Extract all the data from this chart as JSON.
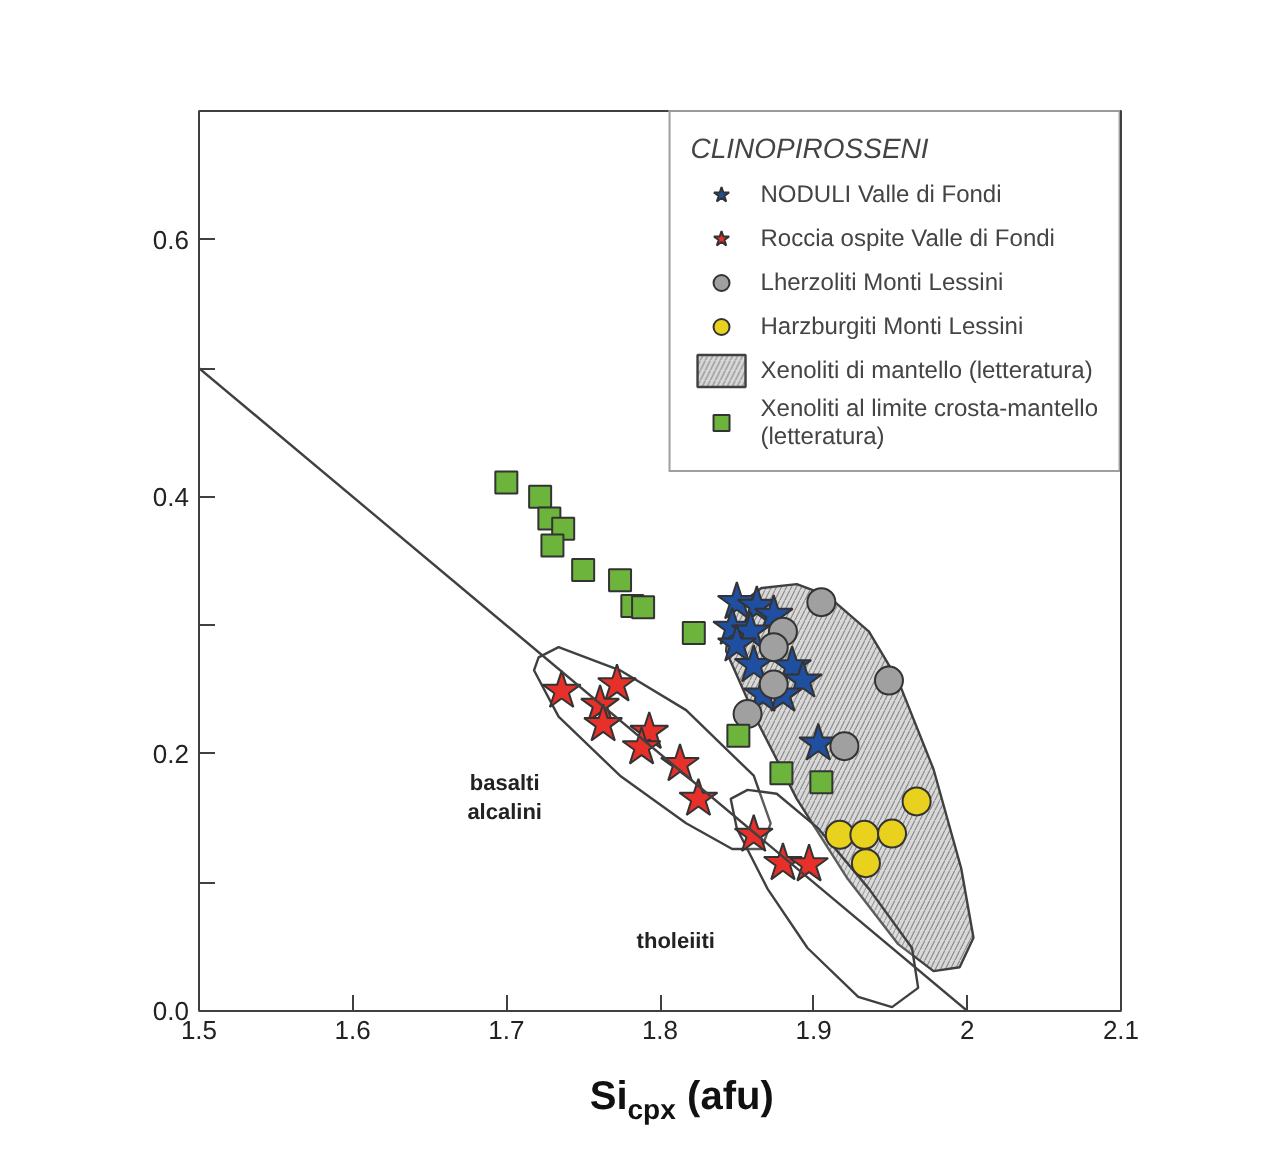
{
  "chart_data": {
    "type": "scatter",
    "xlabel": "Si$_{cpx}$ (afu)",
    "legend_title": "CLINOPIROSSENI",
    "xlim": [
      1.5,
      2.1
    ],
    "ylim": [
      0,
      0.7
    ],
    "xticks": [
      1.5,
      1.6,
      1.7,
      1.8,
      1.9,
      2,
      2.1
    ],
    "yticks": [
      {
        "value": 0,
        "label": "0.0"
      },
      {
        "value": 0.1,
        "label": null
      },
      {
        "value": 0.2,
        "label": "0.2"
      },
      {
        "value": 0.3,
        "label": null
      },
      {
        "value": 0.4,
        "label": "0.4"
      },
      {
        "value": 0.5,
        "label": null
      },
      {
        "value": 0.6,
        "label": "0.6"
      }
    ],
    "grid": false,
    "legend": "top right",
    "annotations": [
      "basalti alcalini",
      "tholeiiti"
    ],
    "series": [
      {
        "name": "NODULI Valle di Fondi",
        "marker": "star",
        "color": "#1f4fa0",
        "x": [
          1.85,
          1.863,
          1.874,
          1.847,
          1.859,
          1.85,
          1.861,
          1.886,
          1.893,
          1.88,
          1.867,
          1.903
        ],
        "values": [
          0.318,
          0.315,
          0.308,
          0.298,
          0.295,
          0.285,
          0.269,
          0.268,
          0.257,
          0.246,
          0.246,
          0.208
        ]
      },
      {
        "name": "Roccia ospite Valle di Fondi",
        "marker": "star",
        "color": "#e8302a",
        "x": [
          1.736,
          1.772,
          1.761,
          1.763,
          1.793,
          1.788,
          1.813,
          1.825,
          1.861,
          1.88,
          1.897
        ],
        "values": [
          0.249,
          0.254,
          0.238,
          0.223,
          0.217,
          0.205,
          0.192,
          0.165,
          0.137,
          0.115,
          0.114
        ]
      },
      {
        "name": "Lherzoliti Monti Lessini",
        "marker": "circle",
        "color": "#a0a0a0",
        "x": [
          1.905,
          1.88,
          1.874,
          1.874,
          1.857,
          1.949,
          1.92
        ],
        "values": [
          0.318,
          0.295,
          0.283,
          0.254,
          0.231,
          0.257,
          0.206
        ]
      },
      {
        "name": "Harzburgiti Monti Lessini",
        "marker": "circle",
        "color": "#e8d21e",
        "x": [
          1.967,
          1.917,
          1.933,
          1.951,
          1.934
        ],
        "values": [
          0.163,
          0.137,
          0.137,
          0.138,
          0.115
        ]
      },
      {
        "name": "Xenoliti di mantello (letteratura)",
        "type": "area",
        "color": "#d8d8d8",
        "x": [
          1.866,
          1.889,
          1.909,
          1.936,
          1.955,
          1.978,
          1.996,
          2.004,
          1.995,
          1.978,
          1.955,
          1.922,
          1.889,
          1.863,
          1.843,
          1.846
        ],
        "values": [
          0.329,
          0.332,
          0.323,
          0.295,
          0.257,
          0.188,
          0.111,
          0.057,
          0.034,
          0.031,
          0.052,
          0.103,
          0.165,
          0.226,
          0.28,
          0.311
        ]
      },
      {
        "name": "Xenoliti al limite crosta-mantello (letteratura)",
        "marker": "square",
        "color": "#6cb43c",
        "x": [
          1.7,
          1.722,
          1.728,
          1.737,
          1.73,
          1.75,
          1.774,
          1.782,
          1.789,
          1.822,
          1.851,
          1.879,
          1.905
        ],
        "values": [
          0.411,
          0.4,
          0.383,
          0.375,
          0.362,
          0.343,
          0.335,
          0.315,
          0.314,
          0.294,
          0.214,
          0.185,
          0.178
        ]
      },
      {
        "type": "area",
        "color": "#ffffff",
        "x": [
          1.721,
          1.734,
          1.774,
          1.817,
          1.861,
          1.872,
          1.866,
          1.847,
          1.817,
          1.774,
          1.734,
          1.718,
          1.721
        ],
        "values": [
          0.275,
          0.283,
          0.265,
          0.234,
          0.183,
          0.146,
          0.126,
          0.126,
          0.146,
          0.183,
          0.229,
          0.265,
          0.275
        ]
      },
      {
        "type": "area",
        "color": "#ffffff",
        "x": [
          1.857,
          1.876,
          1.903,
          1.936,
          1.964,
          1.968,
          1.951,
          1.929,
          1.896,
          1.87,
          1.85,
          1.846,
          1.857
        ],
        "values": [
          0.172,
          0.169,
          0.142,
          0.095,
          0.049,
          0.018,
          0.003,
          0.011,
          0.049,
          0.095,
          0.142,
          0.165,
          0.172
        ]
      },
      {
        "type": "line",
        "color": "#404040",
        "line_style": "solid",
        "x": [
          1.5,
          2.0
        ],
        "values": [
          0.5,
          0
        ]
      }
    ]
  }
}
